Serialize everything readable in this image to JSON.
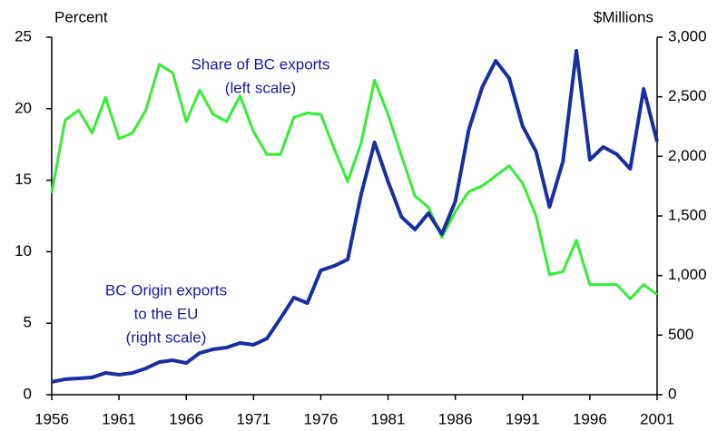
{
  "chart_data": {
    "type": "line",
    "ylabel": "Percent",
    "y2label": "$Millions",
    "x": [
      1956,
      1957,
      1958,
      1959,
      1960,
      1961,
      1962,
      1963,
      1964,
      1965,
      1966,
      1967,
      1968,
      1969,
      1970,
      1971,
      1972,
      1973,
      1974,
      1975,
      1976,
      1977,
      1978,
      1979,
      1980,
      1981,
      1982,
      1983,
      1984,
      1985,
      1986,
      1987,
      1988,
      1989,
      1990,
      1991,
      1992,
      1993,
      1994,
      1995,
      1996,
      1997,
      1998,
      1999,
      2000,
      2001
    ],
    "xlim": [
      1956,
      2001
    ],
    "xticks": [
      1956,
      1961,
      1966,
      1971,
      1976,
      1981,
      1986,
      1991,
      1996,
      2001
    ],
    "ylim": [
      0,
      25
    ],
    "yticks": [
      0,
      5,
      10,
      15,
      20,
      25
    ],
    "y2lim": [
      0,
      3000
    ],
    "y2ticks": [
      0,
      500,
      {
        "value": 1000,
        "label": "1,000"
      },
      {
        "value": 1500,
        "label": "1,500"
      },
      {
        "value": 2000,
        "label": "2,000"
      },
      {
        "value": 2500,
        "label": "2,500"
      },
      {
        "value": 3000,
        "label": "3,000"
      }
    ],
    "grid": false,
    "series": [
      {
        "label_lines": [
          "Share of BC exports",
          "(left scale)"
        ],
        "color": "#33ee33",
        "label_color": "#1a1a9a",
        "values": [
          14.1,
          19.2,
          19.9,
          18.3,
          20.8,
          17.9,
          18.3,
          19.9,
          23.1,
          22.5,
          19.1,
          21.3,
          19.6,
          19.1,
          20.9,
          18.4,
          16.8,
          16.8,
          19.4,
          19.7,
          19.6,
          17.2,
          14.9,
          17.6,
          22.0,
          19.6,
          16.7,
          13.9,
          13.1,
          11.0,
          12.8,
          14.2,
          14.6,
          15.3,
          16.0,
          14.8,
          12.5,
          8.4,
          8.6,
          10.8,
          7.7,
          7.7,
          7.7,
          6.7,
          7.7,
          7.0
        ]
      },
      {
        "label_lines": [
          "BC Origin exports",
          "to the EU",
          "(right scale)"
        ],
        "color": "#1a2ea0",
        "label_color": "#1a1a9a",
        "axis": "y2",
        "values": [
          107,
          130,
          137,
          145,
          183,
          168,
          183,
          221,
          274,
          289,
          266,
          350,
          381,
          396,
          434,
          419,
          472,
          640,
          815,
          769,
          1043,
          1081,
          1135,
          1683,
          2117,
          1789,
          1492,
          1386,
          1523,
          1348,
          1622,
          2223,
          2581,
          2802,
          2657,
          2254,
          2041,
          1576,
          1957,
          2886,
          1972,
          2079,
          2018,
          1896,
          2566,
          2124
        ]
      }
    ]
  }
}
